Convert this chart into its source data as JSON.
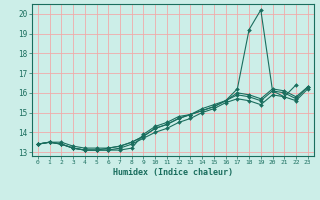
{
  "xlabel": "Humidex (Indice chaleur)",
  "bg_color": "#cceee8",
  "grid_color": "#f0aaaa",
  "line_color": "#1a6e5e",
  "xlim": [
    -0.5,
    23.5
  ],
  "ylim": [
    12.8,
    20.5
  ],
  "xticks": [
    0,
    1,
    2,
    3,
    4,
    5,
    6,
    7,
    8,
    9,
    10,
    11,
    12,
    13,
    14,
    15,
    16,
    17,
    18,
    19,
    20,
    21,
    22,
    23
  ],
  "yticks": [
    13,
    14,
    15,
    16,
    17,
    18,
    19,
    20
  ],
  "series": [
    [
      13.4,
      13.5,
      13.4,
      13.2,
      13.1,
      13.1,
      13.1,
      13.1,
      13.2,
      13.9,
      14.3,
      14.5,
      14.8,
      14.9,
      15.2,
      15.4,
      15.6,
      16.2,
      19.2,
      20.2,
      16.1,
      15.8,
      16.4,
      null
    ],
    [
      13.4,
      13.5,
      13.5,
      13.3,
      13.2,
      13.2,
      13.2,
      13.3,
      13.5,
      13.8,
      14.2,
      14.4,
      14.7,
      14.9,
      15.1,
      15.3,
      15.6,
      15.9,
      15.8,
      15.6,
      16.1,
      16.0,
      15.7,
      16.3
    ],
    [
      13.4,
      13.5,
      13.4,
      13.2,
      13.1,
      13.1,
      13.2,
      13.3,
      13.5,
      13.8,
      14.2,
      14.4,
      14.7,
      14.9,
      15.1,
      15.3,
      15.6,
      16.0,
      15.9,
      15.7,
      16.2,
      16.1,
      15.8,
      16.3
    ],
    [
      13.4,
      13.5,
      13.4,
      13.2,
      13.1,
      13.1,
      13.1,
      13.2,
      13.4,
      13.7,
      14.0,
      14.2,
      14.5,
      14.7,
      15.0,
      15.2,
      15.5,
      15.7,
      15.6,
      15.4,
      15.9,
      15.8,
      15.6,
      16.2
    ]
  ]
}
